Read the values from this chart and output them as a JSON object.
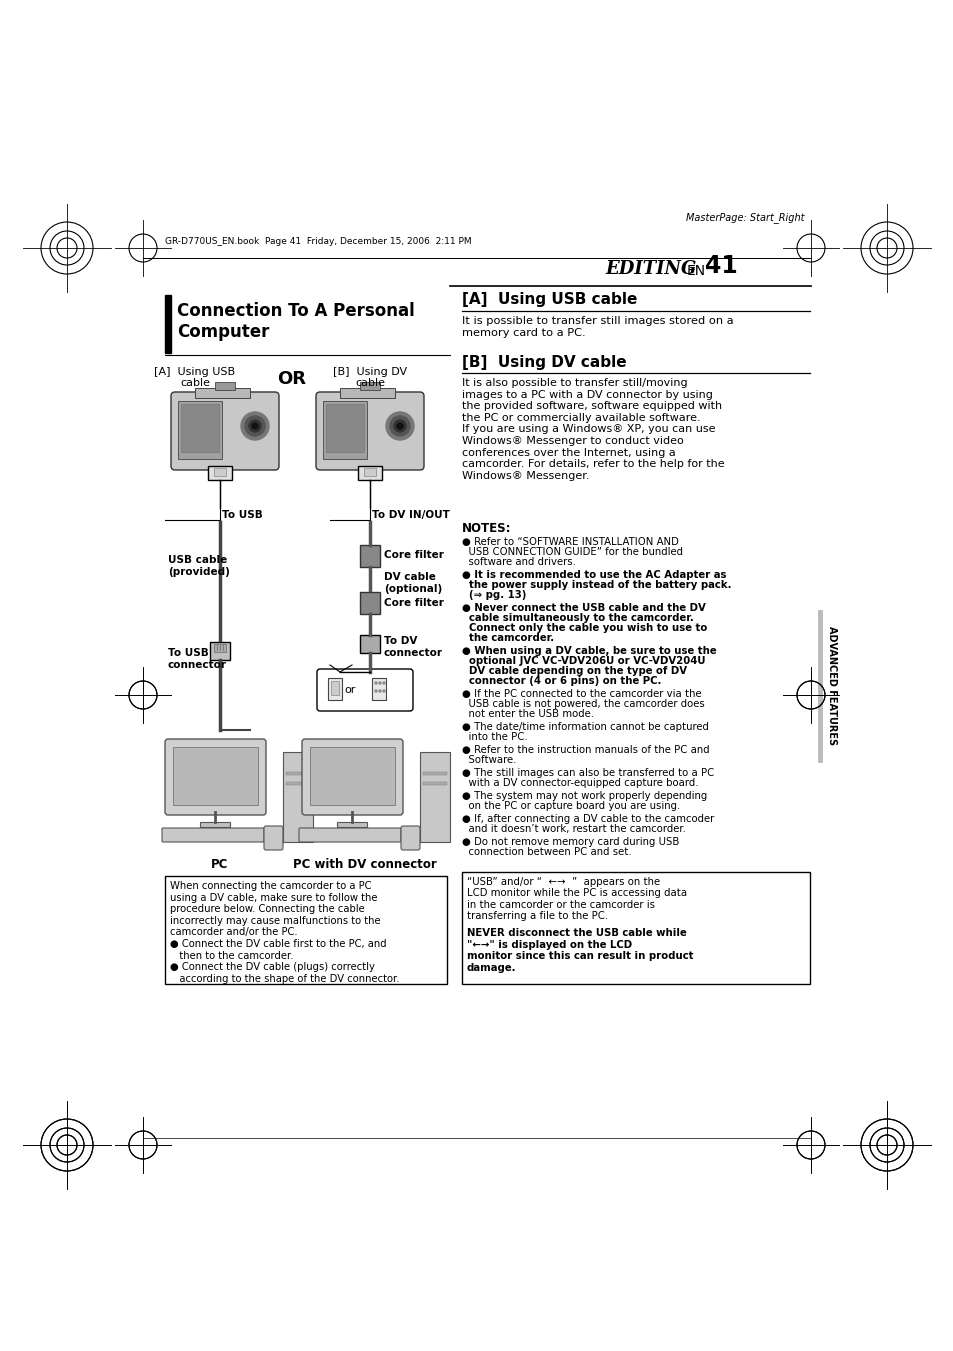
{
  "bg_color": "#ffffff",
  "page_width": 9.54,
  "page_height": 13.51,
  "dpi": 100,
  "header_text": "MasterPage: Start_Right",
  "file_info": "GR-D770US_EN.book  Page 41  Friday, December 15, 2006  2:11 PM",
  "editing_label": "EDITING",
  "en_label": "EN",
  "page_num": "41",
  "main_title_line1": "Connection To A Personal",
  "main_title_line2": "Computer",
  "label_a": "[A]  Using USB",
  "label_a2": "cable",
  "or_label": "OR",
  "label_b": "[B]  Using DV",
  "label_b2": "cable",
  "to_usb": "To USB",
  "to_dv_inout": "To DV IN/OUT",
  "core_filter": "Core filter",
  "dv_cable_opt": "DV cable\n(optional)",
  "core_filter2": "Core filter",
  "to_dv_conn": "To DV\nconnector",
  "usb_cable_prov": "USB cable\n(provided)",
  "to_usb_conn": "To USB\nconnector",
  "pc": "PC",
  "pc_dv": "PC with DV connector",
  "section_a_title": "[A]  Using USB cable",
  "section_a_text": "It is possible to transfer still images stored on a\nmemory card to a PC.",
  "section_b_title": "[B]  Using DV cable",
  "section_b_body": "It is also possible to transfer still/moving\nimages to a PC with a DV connector by using\nthe provided software, software equipped with\nthe PC or commercially available software.\nIf you are using a Windows® XP, you can use\nWindows® Messenger to conduct video\nconferences over the Internet, using a\ncamcorder. For details, refer to the help for the\nWindows® Messenger.",
  "notes_title": "NOTES:",
  "notes": [
    "Refer to “SOFTWARE INSTALLATION AND\n  USB CONNECTION GUIDE” for the bundled\n  software and drivers.",
    "It is recommended to use the AC Adapter as\n  the power supply instead of the battery pack.\n  (⇒ pg. 13)",
    "Never connect the USB cable and the DV\n  cable simultaneously to the camcorder.\n  Connect only the cable you wish to use to\n  the camcorder.",
    "When using a DV cable, be sure to use the\n  optional JVC VC-VDV206U or VC-VDV204U\n  DV cable depending on the type of DV\n  connector (4 or 6 pins) on the PC.",
    "If the PC connected to the camcorder via the\n  USB cable is not powered, the camcorder does\n  not enter the USB mode.",
    "The date/time information cannot be captured\n  into the PC.",
    "Refer to the instruction manuals of the PC and\n  Software.",
    "The still images can also be transferred to a PC\n  with a DV connector-equipped capture board.",
    "The system may not work properly depending\n  on the PC or capture board you are using.",
    "If, after connecting a DV cable to the camcoder\n  and it doesn’t work, restart the camcorder.",
    "Do not remove memory card during USB\n  connection between PC and set."
  ],
  "notes_bold": [
    1,
    2,
    3
  ],
  "box1_title": "",
  "box1_text": "When connecting the camcorder to a PC\nusing a DV cable, make sure to follow the\nprocedure below. Connecting the cable\nincorrectly may cause malfunctions to the\ncamcorder and/or the PC.\n● Connect the DV cable first to the PC, and\n   then to the camcorder.\n● Connect the DV cable (plugs) correctly\n   according to the shape of the DV connector.",
  "box2_line1": "“USB” and/or “  ←→  ”  appears on the",
  "box2_text": "LCD monitor while the PC is accessing data\nin the camcorder or the camcorder is\ntransferring a file to the PC.\nNEVER disconnect the USB cable while\n“  ←→  ” is displayed on the LCD\nmonitor since this can result in product\ndamage.",
  "box2_bold_text": "NEVER disconnect the USB cable while\n“  ←→  ” is displayed on the LCD\nmonitor since this can result in product\ndamage.",
  "advanced_features": "ADVANCED FEATURES"
}
